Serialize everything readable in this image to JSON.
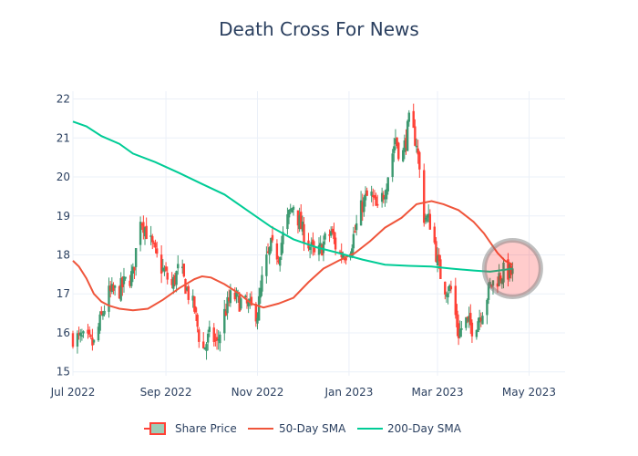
{
  "chart_data": {
    "type": "candlestick",
    "title": "Death Cross For News",
    "xlabel": "",
    "ylabel": "",
    "ylim": [
      14.9,
      22.2
    ],
    "xlim": [
      "2022-07-01",
      "2023-05-25"
    ],
    "x_ticks": [
      {
        "date": "2022-07-01",
        "label": "Jul 2022"
      },
      {
        "date": "2022-09-01",
        "label": "Sep 2022"
      },
      {
        "date": "2022-11-01",
        "label": "Nov 2022"
      },
      {
        "date": "2023-01-01",
        "label": "Jan 2023"
      },
      {
        "date": "2023-03-01",
        "label": "Mar 2023"
      },
      {
        "date": "2023-05-01",
        "label": "May 2023"
      }
    ],
    "y_ticks": [
      15,
      16,
      17,
      18,
      19,
      20,
      21,
      22
    ],
    "colors": {
      "up": "#3d9970",
      "down": "#ff4136",
      "sma50": "#ef553b",
      "sma200": "#00cc96",
      "grid": "#ebf0f8",
      "marker": "#ff0000"
    },
    "legend": [
      {
        "name": "Share Price",
        "type": "candle"
      },
      {
        "name": "50-Day SMA",
        "type": "line",
        "color": "#ef553b"
      },
      {
        "name": "200-Day SMA",
        "type": "line",
        "color": "#00cc96"
      }
    ],
    "price_path": [
      [
        "2022-07-01",
        15.9
      ],
      [
        "2022-07-10",
        15.8
      ],
      [
        "2022-07-15",
        15.7
      ],
      [
        "2022-07-20",
        16.4
      ],
      [
        "2022-07-25",
        17.0
      ],
      [
        "2022-08-01",
        17.1
      ],
      [
        "2022-08-05",
        17.3
      ],
      [
        "2022-08-10",
        17.5
      ],
      [
        "2022-08-15",
        19.0
      ],
      [
        "2022-08-20",
        18.5
      ],
      [
        "2022-08-25",
        18.0
      ],
      [
        "2022-08-30",
        17.6
      ],
      [
        "2022-09-05",
        17.2
      ],
      [
        "2022-09-10",
        17.7
      ],
      [
        "2022-09-15",
        17.1
      ],
      [
        "2022-09-20",
        16.6
      ],
      [
        "2022-09-25",
        15.5
      ],
      [
        "2022-10-01",
        16.0
      ],
      [
        "2022-10-05",
        15.7
      ],
      [
        "2022-10-10",
        16.5
      ],
      [
        "2022-10-15",
        17.0
      ],
      [
        "2022-10-20",
        16.8
      ],
      [
        "2022-10-25",
        16.7
      ],
      [
        "2022-11-01",
        16.5
      ],
      [
        "2022-11-05",
        17.6
      ],
      [
        "2022-11-10",
        18.2
      ],
      [
        "2022-11-15",
        18.0
      ],
      [
        "2022-11-20",
        18.8
      ],
      [
        "2022-11-25",
        19.3
      ],
      [
        "2022-12-01",
        18.6
      ],
      [
        "2022-12-05",
        18.3
      ],
      [
        "2022-12-10",
        17.9
      ],
      [
        "2022-12-15",
        18.3
      ],
      [
        "2022-12-20",
        18.6
      ],
      [
        "2022-12-25",
        18.0
      ],
      [
        "2023-01-01",
        18.1
      ],
      [
        "2023-01-05",
        18.6
      ],
      [
        "2023-01-10",
        19.3
      ],
      [
        "2023-01-15",
        19.6
      ],
      [
        "2023-01-20",
        19.1
      ],
      [
        "2023-01-25",
        19.7
      ],
      [
        "2023-02-01",
        21.0
      ],
      [
        "2023-02-05",
        20.4
      ],
      [
        "2023-02-10",
        21.4
      ],
      [
        "2023-02-15",
        20.9
      ],
      [
        "2023-02-20",
        19.0
      ],
      [
        "2023-02-25",
        18.8
      ],
      [
        "2023-03-01",
        17.8
      ],
      [
        "2023-03-05",
        17.2
      ],
      [
        "2023-03-10",
        17.1
      ],
      [
        "2023-03-15",
        16.0
      ],
      [
        "2023-03-20",
        16.3
      ],
      [
        "2023-03-25",
        16.1
      ],
      [
        "2023-04-01",
        16.7
      ],
      [
        "2023-04-05",
        17.2
      ],
      [
        "2023-04-10",
        17.4
      ],
      [
        "2023-04-15",
        17.6
      ],
      [
        "2023-04-20",
        17.5
      ]
    ],
    "series": [
      {
        "name": "50-Day SMA",
        "points": [
          [
            "2022-07-01",
            17.85
          ],
          [
            "2022-07-05",
            17.7
          ],
          [
            "2022-07-10",
            17.4
          ],
          [
            "2022-07-15",
            17.0
          ],
          [
            "2022-07-20",
            16.8
          ],
          [
            "2022-07-25",
            16.7
          ],
          [
            "2022-08-01",
            16.62
          ],
          [
            "2022-08-10",
            16.58
          ],
          [
            "2022-08-20",
            16.62
          ],
          [
            "2022-08-30",
            16.85
          ],
          [
            "2022-09-10",
            17.15
          ],
          [
            "2022-09-20",
            17.38
          ],
          [
            "2022-09-25",
            17.45
          ],
          [
            "2022-10-01",
            17.42
          ],
          [
            "2022-10-10",
            17.25
          ],
          [
            "2022-10-20",
            17.0
          ],
          [
            "2022-10-28",
            16.75
          ],
          [
            "2022-11-05",
            16.65
          ],
          [
            "2022-11-15",
            16.75
          ],
          [
            "2022-11-25",
            16.9
          ],
          [
            "2022-12-05",
            17.3
          ],
          [
            "2022-12-15",
            17.65
          ],
          [
            "2022-12-25",
            17.85
          ],
          [
            "2023-01-05",
            18.05
          ],
          [
            "2023-01-15",
            18.35
          ],
          [
            "2023-01-25",
            18.7
          ],
          [
            "2023-02-05",
            18.95
          ],
          [
            "2023-02-15",
            19.3
          ],
          [
            "2023-02-25",
            19.38
          ],
          [
            "2023-03-05",
            19.3
          ],
          [
            "2023-03-15",
            19.15
          ],
          [
            "2023-03-25",
            18.85
          ],
          [
            "2023-04-01",
            18.55
          ],
          [
            "2023-04-10",
            18.05
          ],
          [
            "2023-04-15",
            17.85
          ],
          [
            "2023-04-20",
            17.75
          ]
        ]
      },
      {
        "name": "200-Day SMA",
        "points": [
          [
            "2022-07-01",
            21.42
          ],
          [
            "2022-07-10",
            21.3
          ],
          [
            "2022-07-20",
            21.05
          ],
          [
            "2022-08-01",
            20.85
          ],
          [
            "2022-08-10",
            20.6
          ],
          [
            "2022-08-25",
            20.38
          ],
          [
            "2022-09-10",
            20.1
          ],
          [
            "2022-09-25",
            19.82
          ],
          [
            "2022-10-10",
            19.55
          ],
          [
            "2022-10-25",
            19.15
          ],
          [
            "2022-11-10",
            18.72
          ],
          [
            "2022-11-25",
            18.4
          ],
          [
            "2022-12-10",
            18.2
          ],
          [
            "2022-12-25",
            18.05
          ],
          [
            "2023-01-10",
            17.88
          ],
          [
            "2023-01-25",
            17.75
          ],
          [
            "2023-02-10",
            17.72
          ],
          [
            "2023-02-25",
            17.7
          ],
          [
            "2023-03-10",
            17.65
          ],
          [
            "2023-03-25",
            17.6
          ],
          [
            "2023-04-05",
            17.57
          ],
          [
            "2023-04-15",
            17.62
          ],
          [
            "2023-04-20",
            17.65
          ]
        ]
      }
    ],
    "annotation": {
      "type": "circle-marker",
      "date": "2023-04-20",
      "value": 17.65
    }
  }
}
